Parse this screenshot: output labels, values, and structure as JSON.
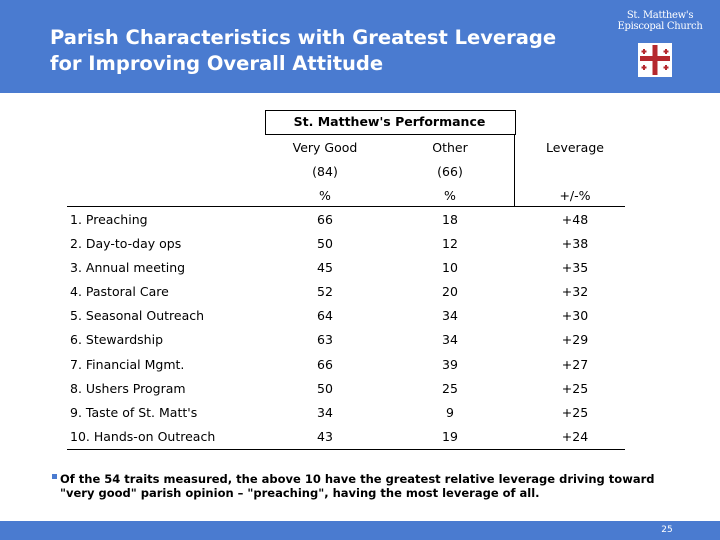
{
  "header": {
    "title_line1": "Parish Characteristics with Greatest Leverage",
    "title_line2": "for Improving Overall Attitude",
    "logo_line1": "St. Matthew's",
    "logo_line2": "Episcopal Church"
  },
  "table": {
    "group_header": "St. Matthew's Performance",
    "col_very_good": "Very Good",
    "col_other": "Other",
    "col_leverage": "Leverage",
    "n_very_good": "(84)",
    "n_other": "(66)",
    "unit_very_good": "%",
    "unit_other": "%",
    "unit_leverage": "+/-%",
    "rows": [
      {
        "label": "1. Preaching",
        "very_good": "66",
        "other": "18",
        "leverage": "+48"
      },
      {
        "label": "2. Day-to-day ops",
        "very_good": "50",
        "other": "12",
        "leverage": "+38"
      },
      {
        "label": "3. Annual meeting",
        "very_good": "45",
        "other": "10",
        "leverage": "+35"
      },
      {
        "label": "4. Pastoral Care",
        "very_good": "52",
        "other": "20",
        "leverage": "+32"
      },
      {
        "label": "5. Seasonal Outreach",
        "very_good": "64",
        "other": "34",
        "leverage": "+30"
      },
      {
        "label": "6. Stewardship",
        "very_good": "63",
        "other": "34",
        "leverage": "+29"
      },
      {
        "label": "7. Financial Mgmt.",
        "very_good": "66",
        "other": "39",
        "leverage": "+27"
      },
      {
        "label": "8. Ushers Program",
        "very_good": "50",
        "other": "25",
        "leverage": "+25"
      },
      {
        "label": "9. Taste of St. Matt's",
        "very_good": "34",
        "other": "9",
        "leverage": "+25"
      },
      {
        "label": "10. Hands-on Outreach",
        "very_good": "43",
        "other": "19",
        "leverage": "+24"
      }
    ]
  },
  "footnote": {
    "line1": "Of the 54 traits measured, the above 10 have the greatest relative leverage driving toward",
    "line2": "\"very good\" parish opinion – \"preaching\", having the most leverage of all."
  },
  "page_number": "25",
  "colors": {
    "brand_blue": "#4a7bd0",
    "cross_red": "#b5282e"
  }
}
